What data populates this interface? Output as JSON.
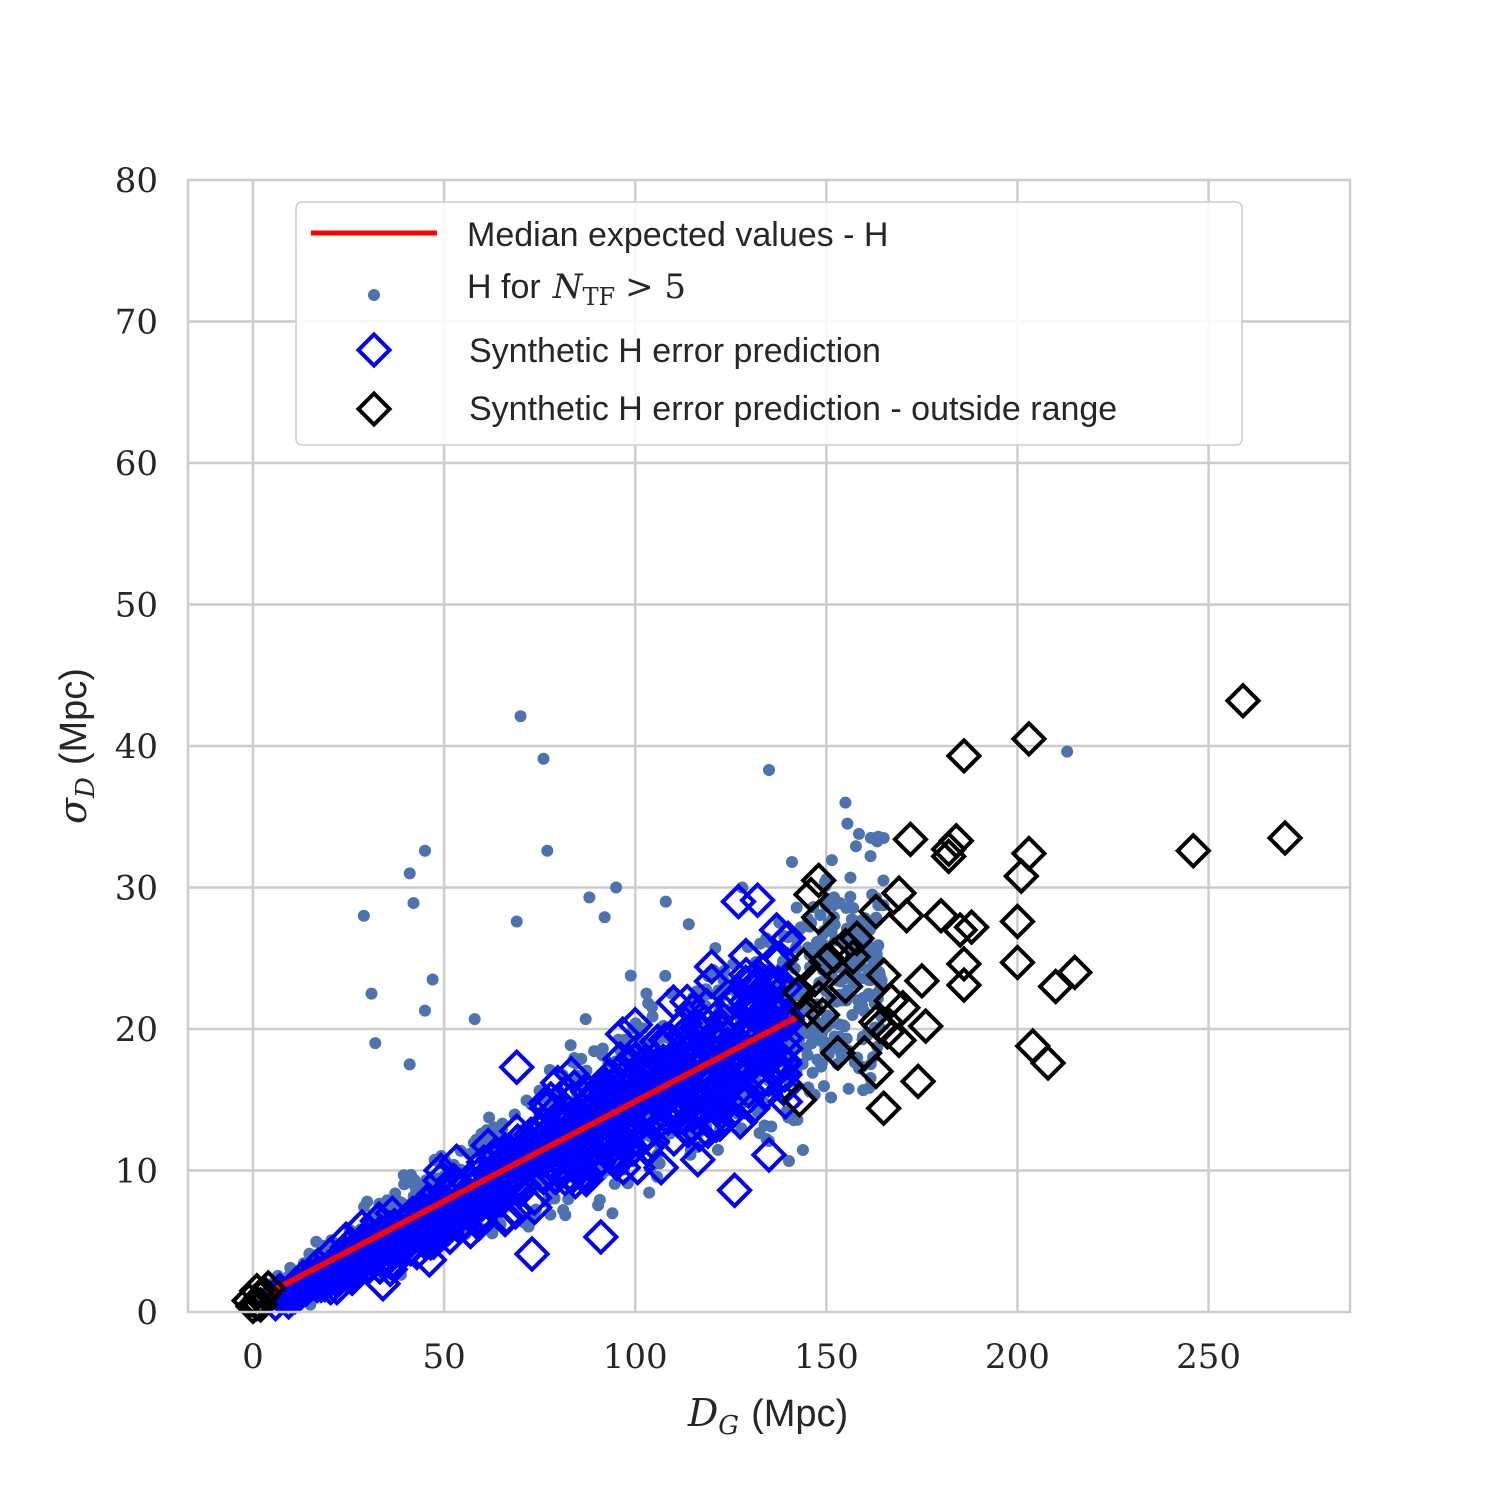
{
  "chart_data": {
    "type": "scatter",
    "xlabel": {
      "math": "D",
      "sub": "G",
      "unit": "(Mpc)"
    },
    "ylabel": {
      "math": "σ",
      "sub": "D",
      "unit": "(Mpc)"
    },
    "xlim": [
      -17,
      287
    ],
    "ylim": [
      0,
      80
    ],
    "xticks": [
      0,
      50,
      100,
      150,
      200,
      250
    ],
    "yticks": [
      0,
      10,
      20,
      30,
      40,
      50,
      60,
      70,
      80
    ],
    "grid": true,
    "legend_position": "top-center",
    "colors": {
      "median_line": "#ff0000",
      "observed_points": "#4c72b0",
      "synthetic_in_range": "#0000ff",
      "synthetic_outside": "#000000"
    },
    "series": [
      {
        "name": "Median expected values - H",
        "kind": "line",
        "x": [
          3,
          142
        ],
        "y": [
          1.2,
          20.8
        ]
      },
      {
        "name_prefix": "H for",
        "name_math": "N",
        "name_sub": "TF",
        "name_rest": "> 5",
        "kind": "points",
        "highlighted": [
          {
            "x": 70,
            "y": 42.1
          },
          {
            "x": 76,
            "y": 39.1
          },
          {
            "x": 135,
            "y": 38.3
          },
          {
            "x": 213,
            "y": 39.6
          },
          {
            "x": 155,
            "y": 36.0
          },
          {
            "x": 45,
            "y": 32.6
          },
          {
            "x": 77,
            "y": 32.6
          },
          {
            "x": 41,
            "y": 31.0
          },
          {
            "x": 42,
            "y": 28.9
          },
          {
            "x": 29,
            "y": 28.0
          },
          {
            "x": 69,
            "y": 27.6
          },
          {
            "x": 31,
            "y": 22.5
          },
          {
            "x": 47,
            "y": 23.5
          },
          {
            "x": 95,
            "y": 30.0
          },
          {
            "x": 88,
            "y": 29.3
          },
          {
            "x": 92,
            "y": 27.9
          },
          {
            "x": 141,
            "y": 31.8
          },
          {
            "x": 165,
            "y": 33.5
          },
          {
            "x": 162,
            "y": 29.5
          },
          {
            "x": 157,
            "y": 27.2
          },
          {
            "x": 128,
            "y": 30.0
          },
          {
            "x": 108,
            "y": 29.0
          },
          {
            "x": 114,
            "y": 27.4
          },
          {
            "x": 58,
            "y": 20.7
          },
          {
            "x": 45,
            "y": 21.3
          },
          {
            "x": 32,
            "y": 19.0
          },
          {
            "x": 41,
            "y": 17.5
          }
        ],
        "cloud": {
          "x_range": [
            1,
            165
          ],
          "slope": 0.148,
          "count": 1400
        }
      },
      {
        "name": "Synthetic H error prediction",
        "kind": "diamonds",
        "highlighted": [
          {
            "x": 127,
            "y": 29.0
          },
          {
            "x": 132,
            "y": 29.1
          },
          {
            "x": 137,
            "y": 27.0
          },
          {
            "x": 140,
            "y": 26.4
          },
          {
            "x": 120,
            "y": 24.4
          },
          {
            "x": 110,
            "y": 21.9
          },
          {
            "x": 126,
            "y": 8.6
          },
          {
            "x": 135,
            "y": 11.1
          },
          {
            "x": 91,
            "y": 5.3
          },
          {
            "x": 73,
            "y": 4.1
          },
          {
            "x": 34,
            "y": 2.0
          },
          {
            "x": 69,
            "y": 17.3
          },
          {
            "x": 100,
            "y": 20.3
          },
          {
            "x": 116,
            "y": 20.1
          }
        ],
        "cloud": {
          "x_range": [
            5,
            140
          ],
          "slope": 0.146,
          "count": 650
        }
      },
      {
        "name": "Synthetic H error prediction - outside range",
        "kind": "diamonds",
        "points": [
          {
            "x": 259,
            "y": 43.2
          },
          {
            "x": 203,
            "y": 40.5
          },
          {
            "x": 186,
            "y": 39.3
          },
          {
            "x": 270,
            "y": 33.5
          },
          {
            "x": 246,
            "y": 32.6
          },
          {
            "x": 172,
            "y": 33.4
          },
          {
            "x": 184,
            "y": 33.3
          },
          {
            "x": 182,
            "y": 32.7
          },
          {
            "x": 182,
            "y": 32.2
          },
          {
            "x": 203,
            "y": 32.4
          },
          {
            "x": 201,
            "y": 30.8
          },
          {
            "x": 148,
            "y": 30.5
          },
          {
            "x": 146,
            "y": 29.5
          },
          {
            "x": 169,
            "y": 29.6
          },
          {
            "x": 148,
            "y": 27.9
          },
          {
            "x": 163,
            "y": 28.3
          },
          {
            "x": 171,
            "y": 28.0
          },
          {
            "x": 180,
            "y": 28.0
          },
          {
            "x": 200,
            "y": 27.6
          },
          {
            "x": 185,
            "y": 27.0
          },
          {
            "x": 188,
            "y": 27.2
          },
          {
            "x": 158,
            "y": 26.4
          },
          {
            "x": 155,
            "y": 25.9
          },
          {
            "x": 152,
            "y": 25.2
          },
          {
            "x": 150,
            "y": 24.8
          },
          {
            "x": 144,
            "y": 24.5
          },
          {
            "x": 157,
            "y": 25.1
          },
          {
            "x": 186,
            "y": 24.6
          },
          {
            "x": 200,
            "y": 24.7
          },
          {
            "x": 215,
            "y": 24.0
          },
          {
            "x": 165,
            "y": 23.8
          },
          {
            "x": 175,
            "y": 23.4
          },
          {
            "x": 147,
            "y": 23.5
          },
          {
            "x": 143,
            "y": 22.6
          },
          {
            "x": 155,
            "y": 23.0
          },
          {
            "x": 186,
            "y": 23.1
          },
          {
            "x": 210,
            "y": 23.0
          },
          {
            "x": 148,
            "y": 22.2
          },
          {
            "x": 167,
            "y": 22.0
          },
          {
            "x": 145,
            "y": 21.3
          },
          {
            "x": 170,
            "y": 21.5
          },
          {
            "x": 149,
            "y": 21.0
          },
          {
            "x": 163,
            "y": 20.5
          },
          {
            "x": 164,
            "y": 20.2
          },
          {
            "x": 176,
            "y": 20.2
          },
          {
            "x": 166,
            "y": 19.8
          },
          {
            "x": 169,
            "y": 19.2
          },
          {
            "x": 153,
            "y": 18.3
          },
          {
            "x": 160,
            "y": 18.3
          },
          {
            "x": 204,
            "y": 18.8
          },
          {
            "x": 208,
            "y": 17.6
          },
          {
            "x": 163,
            "y": 17.0
          },
          {
            "x": 174,
            "y": 16.3
          },
          {
            "x": 143,
            "y": 15.0
          },
          {
            "x": 165,
            "y": 14.4
          },
          {
            "x": 1,
            "y": 0.6
          },
          {
            "x": 2,
            "y": 1.0
          },
          {
            "x": 0,
            "y": 0.4
          },
          {
            "x": 3,
            "y": 1.3
          },
          {
            "x": 1,
            "y": 1.5
          },
          {
            "x": -1,
            "y": 0.8
          },
          {
            "x": 2,
            "y": 0.5
          },
          {
            "x": 4,
            "y": 1.7
          }
        ]
      }
    ]
  }
}
